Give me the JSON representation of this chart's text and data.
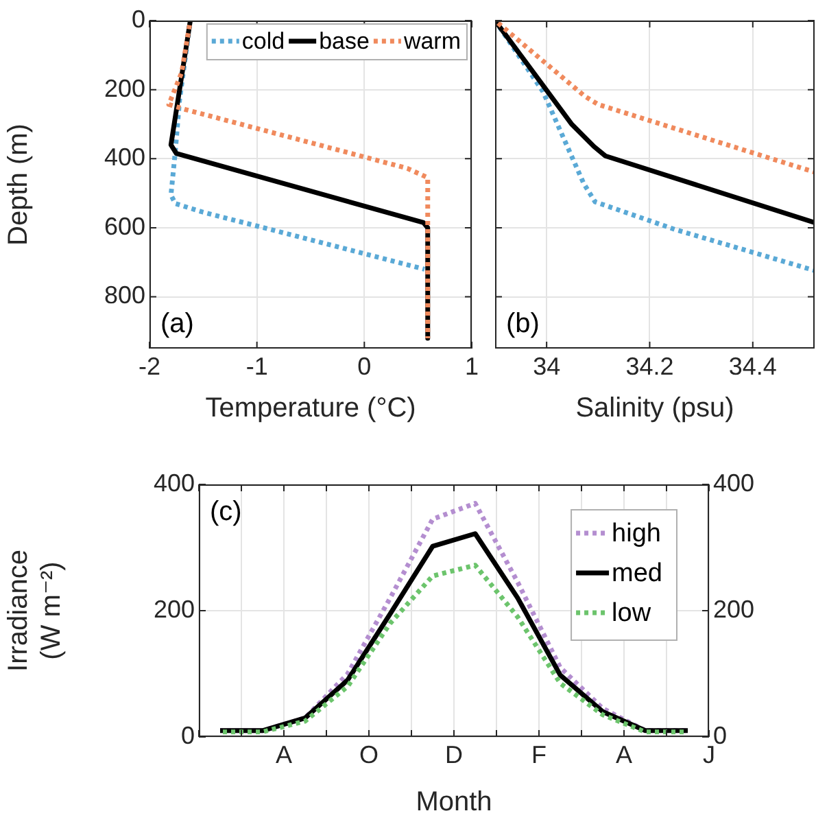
{
  "chart_data": [
    {
      "type": "line",
      "xlabel": "Temperature (°C)",
      "ylabel": "Depth (m)",
      "xlim": [
        -2,
        1
      ],
      "xticks": [
        -2,
        -1,
        0,
        1
      ],
      "ylim": [
        950,
        0
      ],
      "yticks": [
        0,
        200,
        400,
        600,
        800
      ],
      "grid": true,
      "legend": "top right",
      "annotations": [
        "(a)"
      ],
      "series": [
        {
          "name": "cold",
          "color": "#5aa9d6",
          "line_style": "dotted",
          "x": [
            -1.62,
            -1.72,
            -1.76,
            -1.8,
            -1.76,
            -1.5,
            0.56
          ],
          "values": [
            0,
            230,
            380,
            505,
            530,
            555,
            720
          ]
        },
        {
          "name": "base",
          "color": "#000000",
          "line_style": "solid",
          "x": [
            -1.62,
            -1.8,
            -1.75,
            0.55,
            0.59,
            0.59
          ],
          "values": [
            0,
            360,
            385,
            585,
            600,
            920
          ]
        },
        {
          "name": "warm",
          "color": "#f08a5d",
          "line_style": "dotted",
          "x": [
            -1.62,
            -1.7,
            -1.82,
            -1.66,
            0.4,
            0.59,
            0.59
          ],
          "values": [
            0,
            150,
            243,
            258,
            428,
            455,
            920
          ]
        }
      ]
    },
    {
      "type": "line",
      "xlabel": "Salinity (psu)",
      "xlim": [
        33.9,
        34.52
      ],
      "xticks": [
        34,
        34.2,
        34.4
      ],
      "ylim": [
        950,
        0
      ],
      "yticks": [
        0,
        200,
        400,
        600,
        800
      ],
      "tick_labels": "x",
      "grid": true,
      "annotations": [
        "(b)"
      ],
      "series": [
        {
          "color": "#5aa9d6",
          "line_style": "dotted",
          "x": [
            33.9,
            33.993,
            34.072,
            34.094,
            34.249,
            34.52
          ],
          "values": [
            0,
            206,
            472,
            525,
            605,
            724
          ]
        },
        {
          "color": "#000000",
          "line_style": "solid",
          "x": [
            33.9,
            34.048,
            34.092,
            34.114,
            34.52
          ],
          "values": [
            0,
            299,
            365,
            392,
            585
          ]
        },
        {
          "color": "#f08a5d",
          "line_style": "dotted",
          "x": [
            33.9,
            34.074,
            34.1,
            34.52
          ],
          "values": [
            0,
            219,
            243,
            439
          ]
        }
      ]
    },
    {
      "type": "line",
      "xlabel": "Month",
      "ylabel": "Irradiance (W m⁻²)",
      "categories": [
        null,
        null,
        null,
        null,
        "A",
        null,
        null,
        null,
        "O",
        null,
        null,
        null,
        "D",
        null,
        null,
        null,
        "F",
        null,
        null,
        null,
        "A",
        null,
        null,
        null,
        "J"
      ],
      "ylim": [
        0,
        400
      ],
      "yticks": [
        0,
        200,
        400
      ],
      "y2lim": [
        0,
        400
      ],
      "y2ticks": [
        0,
        200,
        400
      ],
      "grid": true,
      "legend": "top right",
      "annotations": [
        "(c)"
      ],
      "series": [
        {
          "name": "high",
          "color": "#b48ed0",
          "line_style": "dotted",
          "values": [
            null,
            10,
            null,
            10,
            null,
            30,
            null,
            100,
            null,
            220,
            null,
            345,
            null,
            370,
            null,
            245,
            null,
            110,
            null,
            45,
            null,
            10,
            null,
            10,
            null
          ]
        },
        {
          "name": "med",
          "color": "#000000",
          "line_style": "solid",
          "values": [
            null,
            10,
            null,
            10,
            null,
            30,
            null,
            90,
            null,
            195,
            null,
            302,
            null,
            322,
            null,
            220,
            null,
            98,
            null,
            40,
            null,
            10,
            null,
            10,
            null
          ]
        },
        {
          "name": "low",
          "color": "#6cc46c",
          "line_style": "dotted",
          "values": [
            null,
            8,
            null,
            8,
            null,
            25,
            null,
            80,
            null,
            180,
            null,
            255,
            null,
            272,
            null,
            190,
            null,
            85,
            null,
            35,
            null,
            8,
            null,
            8,
            null
          ]
        }
      ]
    }
  ]
}
